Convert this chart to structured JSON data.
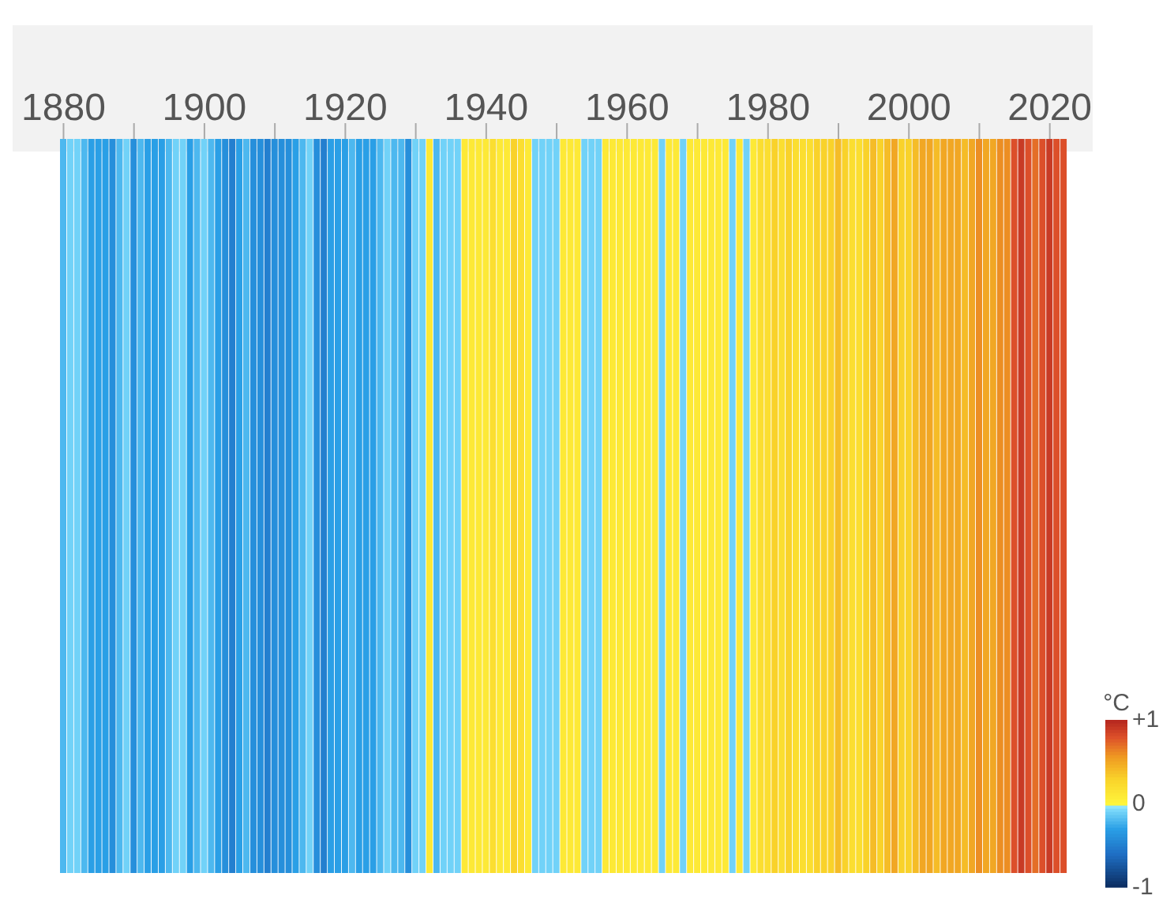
{
  "chart_data": {
    "type": "heatmap",
    "categories": [
      "1880",
      null,
      null,
      null,
      null,
      null,
      null,
      null,
      null,
      null,
      null,
      null,
      null,
      null,
      null,
      null,
      null,
      null,
      null,
      null,
      "1900",
      null,
      null,
      null,
      null,
      null,
      null,
      null,
      null,
      null,
      null,
      null,
      null,
      null,
      null,
      null,
      null,
      null,
      null,
      null,
      "1920",
      null,
      null,
      null,
      null,
      null,
      null,
      null,
      null,
      null,
      null,
      null,
      null,
      null,
      null,
      null,
      null,
      null,
      null,
      null,
      "1940",
      null,
      null,
      null,
      null,
      null,
      null,
      null,
      null,
      null,
      null,
      null,
      null,
      null,
      null,
      null,
      null,
      null,
      null,
      null,
      "1960",
      null,
      null,
      null,
      null,
      null,
      null,
      null,
      null,
      null,
      null,
      null,
      null,
      null,
      null,
      null,
      null,
      null,
      null,
      null,
      "1980",
      null,
      null,
      null,
      null,
      null,
      null,
      null,
      null,
      null,
      null,
      null,
      null,
      null,
      null,
      null,
      null,
      null,
      null,
      null,
      "2000",
      null,
      null,
      null,
      null,
      null,
      null,
      null,
      null,
      null,
      null,
      null,
      null,
      null,
      null,
      null,
      null,
      null,
      null,
      null,
      "2020",
      null,
      null
    ],
    "cells": [
      [
        -0.2,
        -0.1,
        -0.1,
        -0.2,
        -0.3,
        -0.3,
        -0.3,
        -0.4,
        -0.2,
        -0.1,
        -0.4,
        -0.2,
        -0.3,
        -0.3,
        -0.3,
        -0.2,
        -0.1,
        -0.1,
        -0.3,
        -0.2,
        -0.1,
        -0.2,
        -0.3,
        -0.4,
        -0.5,
        -0.3,
        -0.2,
        -0.4,
        -0.4,
        -0.5,
        -0.4,
        -0.4,
        -0.4,
        -0.3,
        -0.2,
        -0.1,
        -0.4,
        -0.5,
        -0.3,
        -0.3,
        -0.3,
        -0.2,
        -0.3,
        -0.3,
        -0.3,
        -0.2,
        -0.1,
        -0.2,
        -0.2,
        -0.4,
        -0.1,
        -0.1,
        0.1,
        -0.2,
        -0.1,
        -0.1,
        -0.1,
        0.1,
        0.1,
        0.1,
        0.1,
        0.2,
        0.1,
        0.1,
        0.3,
        0.2,
        0.1,
        -0.1,
        -0.1,
        -0.1,
        -0.1,
        0.1,
        0.1,
        0.1,
        -0.1,
        -0.1,
        -0.1,
        0.1,
        0.1,
        0.1,
        0.1,
        0.1,
        0.1,
        0.1,
        0.1,
        -0.1,
        0.1,
        0.1,
        -0.1,
        0.1,
        0.1,
        0.1,
        0.1,
        0.1,
        0.1,
        -0.1,
        0.1,
        -0.1,
        0.1,
        0.2,
        0.2,
        0.3,
        0.2,
        0.3,
        0.2,
        0.2,
        0.2,
        0.3,
        0.3,
        0.3,
        0.4,
        0.3,
        0.2,
        0.2,
        0.3,
        0.4,
        0.3,
        0.4,
        0.5,
        0.3,
        0.3,
        0.4,
        0.5,
        0.5,
        0.4,
        0.5,
        0.5,
        0.5,
        0.4,
        0.5,
        0.6,
        0.5,
        0.5,
        0.6,
        0.6,
        0.8,
        0.9,
        0.8,
        0.7,
        0.8,
        0.9,
        0.8,
        0.8
      ]
    ],
    "y_categories": [
      null
    ],
    "clim": [
      -1,
      1
    ],
    "cticks": [
      {
        "value": -1,
        "label": "-1"
      },
      0,
      {
        "value": 1,
        "label": "+1"
      }
    ],
    "clabel": "°C"
  }
}
